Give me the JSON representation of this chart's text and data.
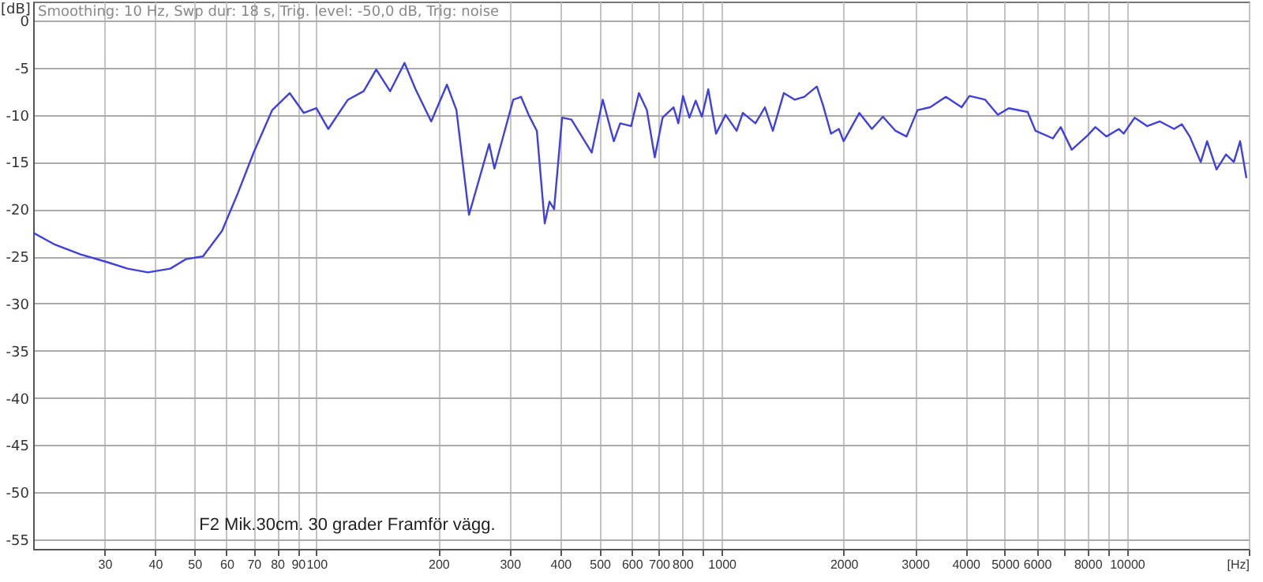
{
  "chart_data": {
    "type": "line",
    "subtitle": "Smoothing: 10 Hz, Swp dur: 18 s, Trig. level: -50,0 dB, Trig: noise",
    "ylabel": "[dB]",
    "annotations": [
      "F2 Mik.30cm. 30 grader Framför vägg."
    ],
    "log": "x",
    "grid": true,
    "xlim": [
      20,
      20000
    ],
    "ylim": [
      -56,
      2
    ],
    "xticks": [
      30,
      40,
      50,
      60,
      70,
      80,
      90,
      100,
      200,
      300,
      400,
      500,
      600,
      700,
      800,
      {
        "value": 900,
        "label": null
      },
      1000,
      2000,
      3000,
      4000,
      5000,
      6000,
      {
        "value": 7000,
        "label": null
      },
      8000,
      {
        "value": 9000,
        "label": null
      },
      10000,
      {
        "value": 20000,
        "label": "[Hz]"
      }
    ],
    "yticks": [
      0,
      -5,
      -10,
      -15,
      -20,
      -25,
      -30,
      -35,
      -40,
      -45,
      -50,
      -55
    ],
    "x": [
      20,
      22.5,
      26.2,
      30.4,
      34.2,
      38.4,
      43.6,
      47.6,
      52.5,
      58.5,
      64,
      70,
      77.8,
      85.9,
      93.1,
      100,
      107,
      119.6,
      130.8,
      140.5,
      152,
      165,
      175.7,
      192,
      210,
      221.6,
      238,
      267,
      275,
      306,
      320,
      334,
      350,
      366,
      376,
      386,
      404,
      426,
      478,
      509,
      542,
      562,
      598,
      625,
      654,
      684,
      715,
      761,
      782,
      803,
      833,
      863,
      894,
      927,
      969,
      1023,
      1089,
      1128,
      1212,
      1279,
      1338,
      1424,
      1516,
      1599,
      1718,
      1780,
      1862,
      1947,
      2000,
      2187,
      2349,
      2500,
      2687,
      2860,
      3045,
      3270,
      3576,
      3911,
      4089,
      4472,
      4804,
      5113,
      5692,
      5953,
      6570,
      6869,
      7313,
      7998,
      8363,
      8903,
      9563,
      9822,
      10457,
      11233,
      12064,
      13080,
      13676,
      14300,
      15220,
      15780,
      16650,
      17570,
      18370,
      19040,
      19730
    ],
    "series": [
      {
        "color": "#4040e0",
        "values": [
          -22.5,
          -23.7,
          -24.8,
          -25.6,
          -26.3,
          -26.7,
          -26.3,
          -25.3,
          -25,
          -22.3,
          -18.3,
          -14,
          -9.5,
          -7.7,
          -9.8,
          -9.3,
          -11.5,
          -8.4,
          -7.5,
          -5.2,
          -7.5,
          -4.5,
          -7.3,
          -10.7,
          -6.8,
          -9.5,
          -20.6,
          -13.1,
          -15.7,
          -8.4,
          -8.1,
          -10,
          -11.7,
          -21.5,
          -19.2,
          -20,
          -10.3,
          -10.5,
          -14,
          -8.4,
          -12.8,
          -10.9,
          -11.2,
          -7.7,
          -9.5,
          -14.5,
          -10.3,
          -9.2,
          -10.9,
          -8,
          -10.3,
          -8.5,
          -10.2,
          -7.3,
          -12,
          -10,
          -11.7,
          -9.8,
          -10.9,
          -9.2,
          -11.7,
          -7.7,
          -8.4,
          -8.1,
          -7,
          -9,
          -12,
          -11.5,
          -12.8,
          -9.8,
          -11.5,
          -10.2,
          -11.7,
          -12.3,
          -9.5,
          -9.2,
          -8.1,
          -9.2,
          -8,
          -8.4,
          -10,
          -9.3,
          -9.7,
          -11.7,
          -12.5,
          -11.3,
          -13.7,
          -12.2,
          -11.3,
          -12.3,
          -11.5,
          -12,
          -10.3,
          -11.2,
          -10.7,
          -11.5,
          -11,
          -12.3,
          -15,
          -12.8,
          -15.8,
          -14.2,
          -15,
          -12.8,
          -16.7
        ]
      }
    ]
  }
}
